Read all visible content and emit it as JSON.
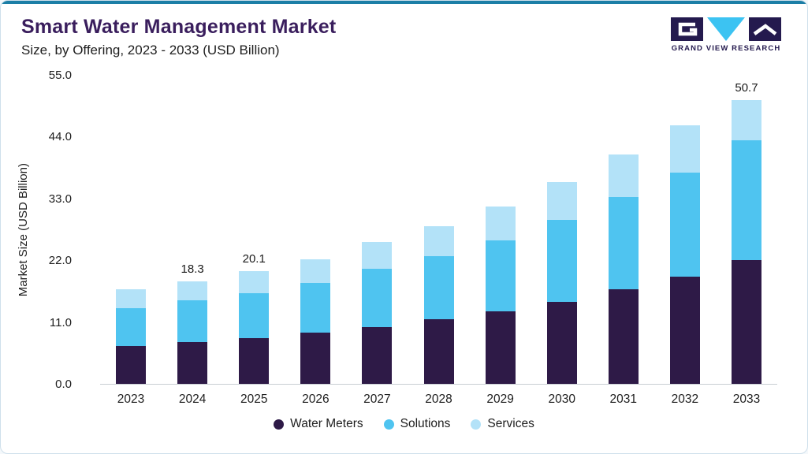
{
  "header": {
    "title": "Smart Water Management Market",
    "subtitle": "Size, by Offering, 2023 - 2033 (USD Billion)"
  },
  "logo": {
    "text": "GRAND VIEW RESEARCH",
    "icons": [
      "logo-square-g-icon",
      "logo-triangle-icon",
      "logo-square-check-icon"
    ]
  },
  "colors": {
    "accent_bar": "#1B7EA6",
    "title_text": "#3A1E5D",
    "card_border": "#CFE0EB",
    "axis_text": "#1E1E1E",
    "water_meters": "#2E1A47",
    "solutions": "#4FC4F0",
    "services": "#B3E2F8"
  },
  "chart_data": {
    "type": "bar",
    "stacked": true,
    "title": "Smart Water Management Market Size, by Offering, 2023 - 2033 (USD Billion)",
    "ylabel": "Market Size (USD Billion)",
    "ylim": [
      0,
      55
    ],
    "yticks": [
      0,
      11,
      22,
      33,
      44,
      55
    ],
    "ytick_labels": [
      "0.0",
      "11.0",
      "22.0",
      "33.0",
      "44.0",
      "55.0"
    ],
    "grid": false,
    "legend_position": "bottom",
    "categories": [
      "2023",
      "2024",
      "2025",
      "2026",
      "2027",
      "2028",
      "2029",
      "2030",
      "2031",
      "2032",
      "2033"
    ],
    "series": [
      {
        "name": "Water Meters",
        "color": "#2E1A47",
        "values": [
          6.8,
          7.4,
          8.1,
          9.2,
          10.2,
          11.6,
          12.9,
          14.6,
          16.9,
          19.2,
          22.1
        ]
      },
      {
        "name": "Solutions",
        "color": "#4FC4F0",
        "values": [
          6.7,
          7.5,
          8.1,
          8.8,
          10.3,
          11.2,
          12.7,
          14.7,
          16.5,
          18.5,
          21.3
        ]
      },
      {
        "name": "Services",
        "color": "#B3E2F8",
        "values": [
          3.4,
          3.4,
          3.9,
          4.3,
          4.8,
          5.4,
          6.0,
          6.7,
          7.6,
          8.5,
          7.3
        ]
      }
    ],
    "totals_estimated": [
      16.9,
      18.3,
      20.1,
      22.3,
      25.3,
      28.2,
      31.6,
      36.0,
      41.0,
      46.2,
      50.7
    ],
    "bar_labels": [
      "",
      "18.3",
      "20.1",
      "",
      "",
      "",
      "",
      "",
      "",
      "",
      "50.7"
    ]
  }
}
